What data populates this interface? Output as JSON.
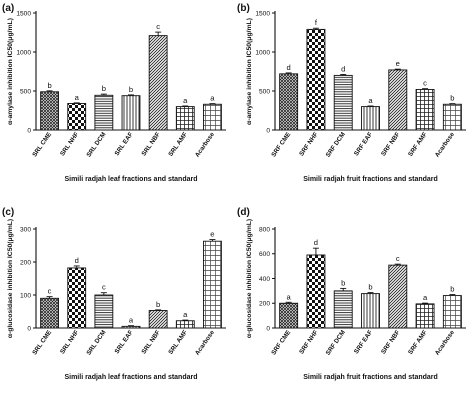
{
  "panels": [
    {
      "label": "(a)"
    },
    {
      "label": "(b)"
    },
    {
      "label": "(c)"
    },
    {
      "label": "(d)"
    }
  ],
  "chart_data": [
    {
      "type": "bar",
      "panel": "(a)",
      "ylabel": "α-amylase inhibition IC50(μg/mL)",
      "xlabel": "Simili radjah leaf  fractions and standard",
      "ylim": [
        0,
        1500
      ],
      "yticks": [
        "0",
        "500",
        "1000",
        "1500"
      ],
      "yticks_val": [
        0,
        500,
        1000,
        1500
      ],
      "categories": [
        "SRL CME",
        "SRL NHF",
        "SRL DCM",
        "SRL EAF",
        "SRL NBF",
        "SRL AMF",
        "Acarbose"
      ],
      "values": [
        490,
        340,
        445,
        440,
        1210,
        300,
        330
      ],
      "errors": [
        12,
        8,
        15,
        10,
        45,
        8,
        8
      ],
      "significance": [
        "b",
        "a",
        "b",
        "b",
        "c",
        "a",
        "a"
      ],
      "patterns": [
        "crosshatch",
        "checker",
        "hlines",
        "vlines",
        "diag",
        "grid",
        "grid2"
      ]
    },
    {
      "type": "bar",
      "panel": "(b)",
      "ylabel": "α-amylase inhibition IC50(μg/mL)",
      "xlabel": "Simili radjah fruit fractions and standard",
      "ylim": [
        0,
        1500
      ],
      "yticks": [
        "0",
        "500",
        "1000",
        "1500"
      ],
      "yticks_val": [
        0,
        500,
        1000,
        1500
      ],
      "categories": [
        "SRF CME",
        "SRF NHF",
        "SRF DCM",
        "SRF EAF",
        "SRF NBF",
        "SRF AMF",
        "Acarbose"
      ],
      "values": [
        720,
        1290,
        700,
        300,
        770,
        520,
        330
      ],
      "errors": [
        12,
        15,
        12,
        8,
        10,
        10,
        8
      ],
      "significance": [
        "d",
        "f",
        "d",
        "a",
        "e",
        "c",
        "b"
      ],
      "patterns": [
        "crosshatch",
        "checker",
        "hlines",
        "vlines",
        "diag",
        "grid",
        "grid2"
      ]
    },
    {
      "type": "bar",
      "panel": "(c)",
      "ylabel": "α-glucosidase inhibition IC50(μg/mL)",
      "xlabel": "Simili radjah leaf  fractions and standard",
      "ylim": [
        0,
        300
      ],
      "yticks": [
        "0",
        "100",
        "200",
        "300"
      ],
      "yticks_val": [
        0,
        100,
        200,
        300
      ],
      "categories": [
        "SRL CME",
        "SRL NHF",
        "SRL DCM",
        "SRL EAF",
        "SRL NBF",
        "SRL AMF",
        "Acarbose"
      ],
      "values": [
        90,
        182,
        100,
        5,
        53,
        22,
        263
      ],
      "errors": [
        5,
        6,
        7,
        2,
        2,
        2,
        5
      ],
      "significance": [
        "c",
        "d",
        "c",
        "a",
        "b",
        "a",
        "e"
      ],
      "patterns": [
        "crosshatch",
        "checker",
        "hlines",
        "vlines",
        "diag",
        "grid",
        "grid2"
      ]
    },
    {
      "type": "bar",
      "panel": "(d)",
      "ylabel": "α-glucosidase inhibition IC50(μg/mL)",
      "xlabel": "Simili radjah fruit fractions and standard",
      "ylim": [
        0,
        800
      ],
      "yticks": [
        "0",
        "200",
        "400",
        "600",
        "800"
      ],
      "yticks_val": [
        0,
        200,
        400,
        600,
        800
      ],
      "categories": [
        "SRF CME",
        "SRF NHF",
        "SRF DCM",
        "SRF EAF",
        "SRF NBF",
        "SRF AMF",
        "Acarbose"
      ],
      "values": [
        200,
        590,
        300,
        278,
        508,
        195,
        262
      ],
      "errors": [
        8,
        55,
        20,
        8,
        8,
        6,
        8
      ],
      "significance": [
        "a",
        "d",
        "b",
        "b",
        "c",
        "a",
        "b"
      ],
      "patterns": [
        "crosshatch",
        "checker",
        "hlines",
        "vlines",
        "diag",
        "grid",
        "grid2"
      ]
    }
  ]
}
